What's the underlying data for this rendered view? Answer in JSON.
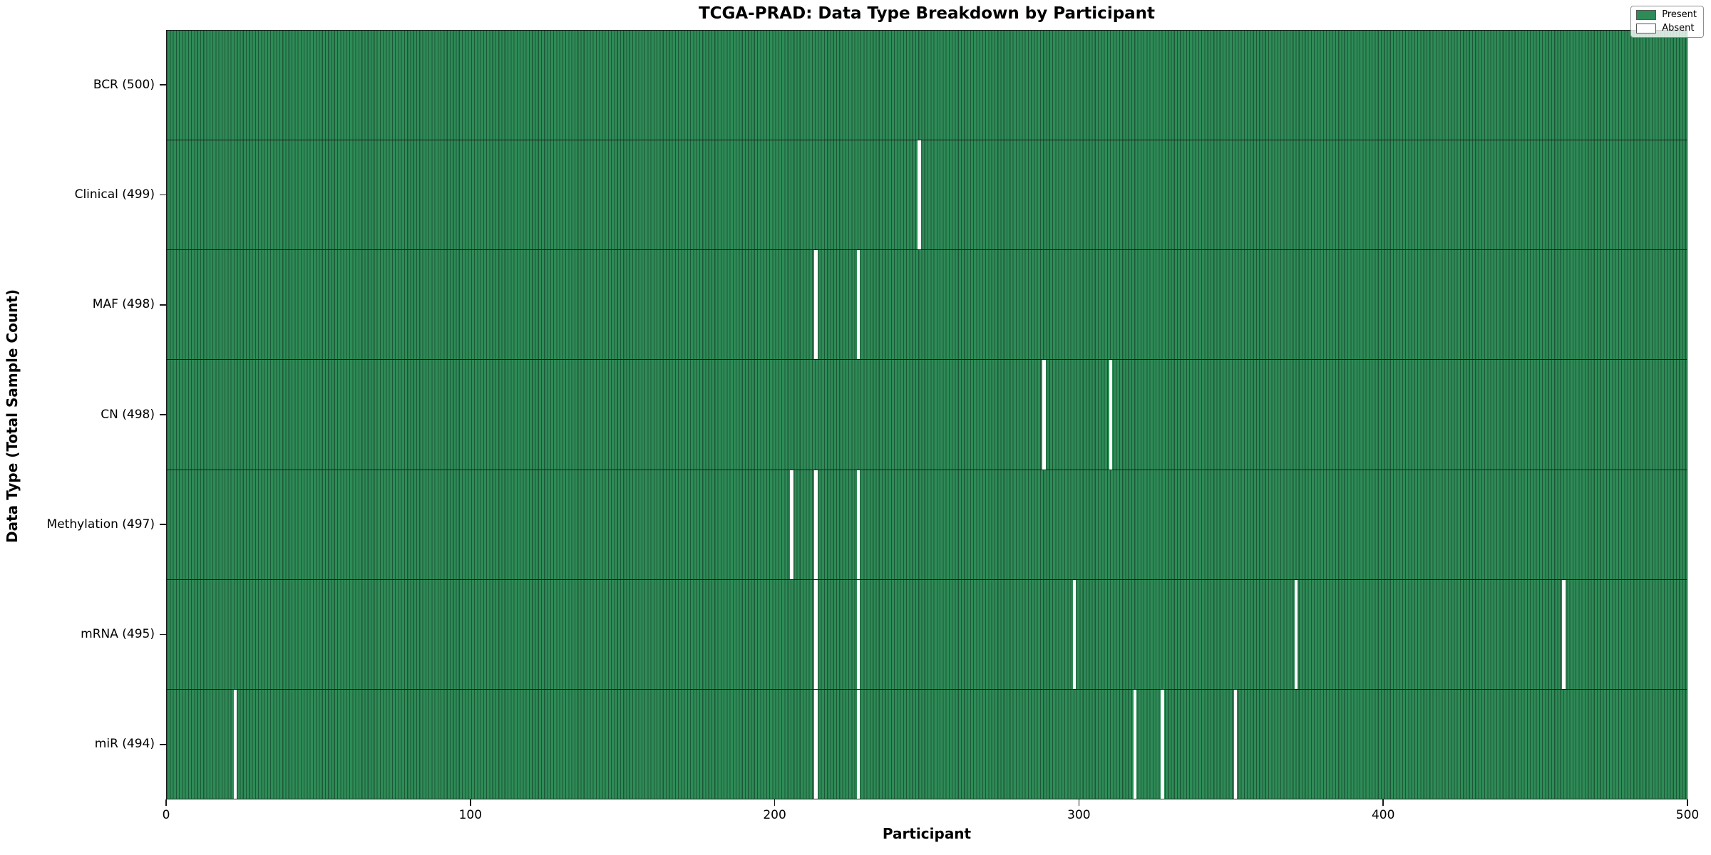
{
  "chart_data": {
    "type": "heatmap",
    "title": "TCGA-PRAD: Data Type Breakdown by Participant",
    "xlabel": "Participant",
    "ylabel": "Data Type (Total Sample Count)",
    "x_range": [
      0,
      500
    ],
    "x_ticks": [
      0,
      100,
      200,
      300,
      400,
      500
    ],
    "n_participants": 500,
    "grid": false,
    "legend_position": "upper right",
    "legend": [
      {
        "label": "Present",
        "color": "#2e8b57"
      },
      {
        "label": "Absent",
        "color": "#ffffff"
      }
    ],
    "colors": {
      "present": "#2e8b57",
      "edge": "#1d5737",
      "absent": "#ffffff"
    },
    "rows": [
      {
        "name": "bcr",
        "label": "BCR (500)",
        "total": 500,
        "absent_participants": []
      },
      {
        "name": "clinical",
        "label": "Clinical (499)",
        "total": 499,
        "absent_participants": [
          247
        ]
      },
      {
        "name": "maf",
        "label": "MAF (498)",
        "total": 498,
        "absent_participants": [
          213,
          227
        ]
      },
      {
        "name": "cn",
        "label": "CN (498)",
        "total": 498,
        "absent_participants": [
          288,
          310
        ]
      },
      {
        "name": "methylation",
        "label": "Methylation (497)",
        "total": 497,
        "absent_participants": [
          205,
          213,
          227
        ]
      },
      {
        "name": "mrna",
        "label": "mRNA (495)",
        "total": 495,
        "absent_participants": [
          213,
          227,
          298,
          371,
          459
        ]
      },
      {
        "name": "mir",
        "label": "miR (494)",
        "total": 494,
        "absent_participants": [
          22,
          213,
          227,
          318,
          327,
          351
        ]
      }
    ]
  }
}
